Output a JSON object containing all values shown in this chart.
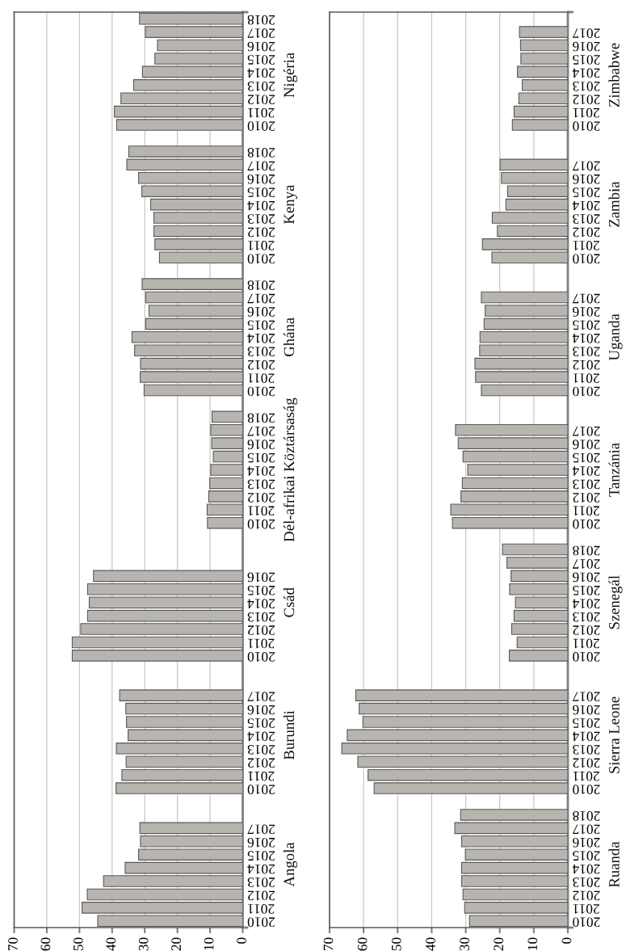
{
  "chart_data": [
    {
      "type": "bar",
      "orientation": "horizontal",
      "grid": "x",
      "xlim": [
        70,
        0
      ],
      "xticks": [
        0,
        10,
        20,
        30,
        40,
        50,
        60,
        70
      ],
      "categories": [
        "2018",
        "2017",
        "2016",
        "2015",
        "2014",
        "2013",
        "2012",
        "2011",
        "2010",
        null,
        "2018",
        "2017",
        "2016",
        "2015",
        "2014",
        "2013",
        "2012",
        "2011",
        "2010",
        null,
        "2018",
        "2017",
        "2016",
        "2015",
        "2014",
        "2013",
        "2012",
        "2011",
        "2010",
        null,
        "2018",
        "2017",
        "2016",
        "2015",
        "2014",
        "2013",
        "2012",
        "2011",
        "2010",
        null,
        null,
        null,
        "2016",
        "2015",
        "2014",
        "2013",
        "2012",
        "2011",
        "2010",
        null,
        null,
        "2017",
        "2016",
        "2015",
        "2014",
        "2013",
        "2012",
        "2011",
        "2010",
        null,
        null,
        "2017",
        "2016",
        "2015",
        "2014",
        "2013",
        "2012",
        "2011",
        "2010"
      ],
      "series": [
        {
          "name": "Nigéria",
          "color": "#b8b5b0",
          "values": [
            31.6,
            29.8,
            26.1,
            26.9,
            30.7,
            33.4,
            37.3,
            39.3,
            38.6,
            null,
            null,
            null,
            null,
            null,
            null,
            null,
            null,
            null,
            null,
            null,
            null,
            null,
            null,
            null,
            null,
            null,
            null,
            null,
            null,
            null,
            null,
            null,
            null,
            null,
            null,
            null,
            null,
            null,
            null,
            null,
            null,
            null,
            null,
            null,
            null,
            null,
            null,
            null,
            null,
            null,
            null,
            null,
            null,
            null,
            null,
            null,
            null,
            null,
            null,
            null,
            null,
            null,
            null,
            null,
            null,
            null,
            null,
            null,
            null
          ]
        },
        {
          "name": "Kenya",
          "color": "#b8b5b0",
          "values": [
            null,
            null,
            null,
            null,
            null,
            null,
            null,
            null,
            null,
            null,
            34.9,
            35.5,
            31.9,
            30.9,
            28.2,
            27.2,
            27.2,
            26.9,
            25.5,
            null,
            null,
            null,
            null,
            null,
            null,
            null,
            null,
            null,
            null,
            null,
            null,
            null,
            null,
            null,
            null,
            null,
            null,
            null,
            null,
            null,
            null,
            null,
            null,
            null,
            null,
            null,
            null,
            null,
            null,
            null,
            null,
            null,
            null,
            null,
            null,
            null,
            null,
            null,
            null,
            null,
            null,
            null,
            null,
            null,
            null,
            null,
            null,
            null,
            null
          ]
        },
        {
          "name": "Ghána",
          "color": "#b8b5b0",
          "values": [
            null,
            null,
            null,
            null,
            null,
            null,
            null,
            null,
            null,
            null,
            null,
            null,
            null,
            null,
            null,
            null,
            null,
            null,
            null,
            null,
            30.8,
            29.7,
            28.7,
            29.7,
            33.9,
            33.1,
            31.3,
            31.4,
            30.2,
            null,
            null,
            null,
            null,
            null,
            null,
            null,
            null,
            null,
            null,
            null,
            null,
            null,
            null,
            null,
            null,
            null,
            null,
            null,
            null,
            null,
            null,
            null,
            null,
            null,
            null,
            null,
            null,
            null,
            null,
            null,
            null,
            null,
            null,
            null,
            null,
            null,
            null,
            null,
            null
          ]
        },
        {
          "name": "Dél-afrikai Köztársaság",
          "color": "#b8b5b0",
          "values": [
            null,
            null,
            null,
            null,
            null,
            null,
            null,
            null,
            null,
            null,
            null,
            null,
            null,
            null,
            null,
            null,
            null,
            null,
            null,
            null,
            null,
            null,
            null,
            null,
            null,
            null,
            null,
            null,
            null,
            null,
            9.4,
            9.8,
            9.5,
            9.0,
            9.8,
            10.1,
            10.4,
            10.9,
            10.8,
            null,
            null,
            null,
            null,
            null,
            null,
            null,
            null,
            null,
            null,
            null,
            null,
            null,
            null,
            null,
            null,
            null,
            null,
            null,
            null,
            null,
            null,
            null,
            null,
            null,
            null,
            null,
            null,
            null,
            null
          ]
        },
        {
          "name": "Csád",
          "color": "#b8b5b0",
          "values": [
            null,
            null,
            null,
            null,
            null,
            null,
            null,
            null,
            null,
            null,
            null,
            null,
            null,
            null,
            null,
            null,
            null,
            null,
            null,
            null,
            null,
            null,
            null,
            null,
            null,
            null,
            null,
            null,
            null,
            null,
            null,
            null,
            null,
            null,
            null,
            null,
            null,
            null,
            null,
            null,
            null,
            null,
            45.7,
            47.5,
            47.0,
            47.5,
            49.6,
            52.2,
            52.2,
            null,
            null,
            null,
            null,
            null,
            null,
            null,
            null,
            null,
            null,
            null,
            null,
            null,
            null,
            null,
            null,
            null,
            null,
            null,
            null
          ]
        },
        {
          "name": "Burundi",
          "color": "#b8b5b0",
          "values": [
            null,
            null,
            null,
            null,
            null,
            null,
            null,
            null,
            null,
            null,
            null,
            null,
            null,
            null,
            null,
            null,
            null,
            null,
            null,
            null,
            null,
            null,
            null,
            null,
            null,
            null,
            null,
            null,
            null,
            null,
            null,
            null,
            null,
            null,
            null,
            null,
            null,
            null,
            null,
            null,
            null,
            null,
            null,
            null,
            null,
            null,
            null,
            null,
            null,
            null,
            null,
            37.7,
            35.8,
            35.6,
            35.1,
            38.7,
            35.7,
            37.0,
            38.8,
            null,
            null,
            null,
            null,
            null,
            null,
            null,
            null,
            null,
            null
          ]
        },
        {
          "name": "Angola",
          "color": "#b8b5b0",
          "values": [
            null,
            null,
            null,
            null,
            null,
            null,
            null,
            null,
            null,
            null,
            null,
            null,
            null,
            null,
            null,
            null,
            null,
            null,
            null,
            null,
            null,
            null,
            null,
            null,
            null,
            null,
            null,
            null,
            null,
            null,
            null,
            null,
            null,
            null,
            null,
            null,
            null,
            null,
            null,
            null,
            null,
            null,
            null,
            null,
            null,
            null,
            null,
            null,
            null,
            null,
            null,
            null,
            null,
            null,
            null,
            null,
            null,
            null,
            null,
            null,
            null,
            31.5,
            31.3,
            31.9,
            36.0,
            42.6,
            47.6,
            49.2,
            44.4
          ]
        }
      ]
    },
    {
      "type": "bar",
      "orientation": "horizontal",
      "grid": "x",
      "xlim": [
        70,
        0
      ],
      "xticks": [
        0,
        10,
        20,
        30,
        40,
        50,
        60,
        70
      ],
      "categories": [
        null,
        "2017",
        "2016",
        "2015",
        "2014",
        "2013",
        "2012",
        "2011",
        "2010",
        null,
        null,
        "2017",
        "2016",
        "2015",
        "2014",
        "2013",
        "2012",
        "2011",
        "2010",
        null,
        null,
        "2017",
        "2016",
        "2015",
        "2014",
        "2013",
        "2012",
        "2011",
        "2010",
        null,
        null,
        "2017",
        "2016",
        "2015",
        "2014",
        "2013",
        "2012",
        "2011",
        "2010",
        null,
        "2018",
        "2017",
        "2016",
        "2015",
        "2014",
        "2013",
        "2012",
        "2011",
        "2010",
        null,
        null,
        "2017",
        "2016",
        "2015",
        "2014",
        "2013",
        "2012",
        "2011",
        "2010",
        null,
        "2018",
        "2017",
        "2016",
        "2015",
        "2014",
        "2013",
        "2012",
        "2011",
        "2010"
      ],
      "series": [
        {
          "name": "Zimbabwe",
          "color": "#b8b5b0",
          "values": [
            null,
            14.2,
            13.9,
            13.8,
            14.8,
            13.4,
            14.4,
            15.8,
            16.3,
            null,
            null,
            null,
            null,
            null,
            null,
            null,
            null,
            null,
            null,
            null,
            null,
            null,
            null,
            null,
            null,
            null,
            null,
            null,
            null,
            null,
            null,
            null,
            null,
            null,
            null,
            null,
            null,
            null,
            null,
            null,
            null,
            null,
            null,
            null,
            null,
            null,
            null,
            null,
            null,
            null,
            null,
            null,
            null,
            null,
            null,
            null,
            null,
            null,
            null,
            null,
            null,
            null,
            null,
            null,
            null,
            null,
            null,
            null,
            null
          ]
        },
        {
          "name": "Zambia",
          "color": "#b8b5b0",
          "values": [
            null,
            null,
            null,
            null,
            null,
            null,
            null,
            null,
            null,
            null,
            null,
            19.9,
            19.5,
            17.7,
            18.2,
            22.2,
            20.7,
            25.1,
            22.3,
            null,
            null,
            null,
            null,
            null,
            null,
            null,
            null,
            null,
            null,
            null,
            null,
            null,
            null,
            null,
            null,
            null,
            null,
            null,
            null,
            null,
            null,
            null,
            null,
            null,
            null,
            null,
            null,
            null,
            null,
            null,
            null,
            null,
            null,
            null,
            null,
            null,
            null,
            null,
            null,
            null,
            null,
            null,
            null,
            null,
            null,
            null,
            null,
            null,
            null
          ]
        },
        {
          "name": "Uganda",
          "color": "#b8b5b0",
          "values": [
            null,
            null,
            null,
            null,
            null,
            null,
            null,
            null,
            null,
            null,
            null,
            null,
            null,
            null,
            null,
            null,
            null,
            null,
            null,
            null,
            null,
            25.4,
            24.3,
            24.6,
            25.8,
            25.9,
            27.3,
            27.1,
            25.4,
            null,
            null,
            null,
            null,
            null,
            null,
            null,
            null,
            null,
            null,
            null,
            null,
            null,
            null,
            null,
            null,
            null,
            null,
            null,
            null,
            null,
            null,
            null,
            null,
            null,
            null,
            null,
            null,
            null,
            null,
            null,
            null,
            null,
            null,
            null,
            null,
            null,
            null,
            null,
            null
          ]
        },
        {
          "name": "Tanzánia",
          "color": "#b8b5b0",
          "values": [
            null,
            null,
            null,
            null,
            null,
            null,
            null,
            null,
            null,
            null,
            null,
            null,
            null,
            null,
            null,
            null,
            null,
            null,
            null,
            null,
            null,
            null,
            null,
            null,
            null,
            null,
            null,
            null,
            null,
            null,
            null,
            33.0,
            32.2,
            30.8,
            29.4,
            31.0,
            31.4,
            34.4,
            33.9,
            null,
            null,
            null,
            null,
            null,
            null,
            null,
            null,
            null,
            null,
            null,
            null,
            null,
            null,
            null,
            null,
            null,
            null,
            null,
            null,
            null,
            null,
            null,
            null,
            null,
            null,
            null,
            null,
            null,
            null
          ]
        },
        {
          "name": "Szenegál",
          "color": "#b8b5b0",
          "values": [
            null,
            null,
            null,
            null,
            null,
            null,
            null,
            null,
            null,
            null,
            null,
            null,
            null,
            null,
            null,
            null,
            null,
            null,
            null,
            null,
            null,
            null,
            null,
            null,
            null,
            null,
            null,
            null,
            null,
            null,
            null,
            null,
            null,
            null,
            null,
            null,
            null,
            null,
            null,
            null,
            19.2,
            17.9,
            16.7,
            17.1,
            15.4,
            15.8,
            16.5,
            14.9,
            17.2,
            null,
            null,
            null,
            null,
            null,
            null,
            null,
            null,
            null,
            null,
            null,
            null,
            null,
            null,
            null,
            null,
            null,
            null,
            null,
            null
          ]
        },
        {
          "name": "Sierra Leone",
          "color": "#b8b5b0",
          "values": [
            null,
            null,
            null,
            null,
            null,
            null,
            null,
            null,
            null,
            null,
            null,
            null,
            null,
            null,
            null,
            null,
            null,
            null,
            null,
            null,
            null,
            null,
            null,
            null,
            null,
            null,
            null,
            null,
            null,
            null,
            null,
            null,
            null,
            null,
            null,
            null,
            null,
            null,
            null,
            null,
            null,
            null,
            null,
            null,
            null,
            null,
            null,
            null,
            null,
            null,
            null,
            62.3,
            61.3,
            60.2,
            64.8,
            66.4,
            61.7,
            58.7,
            56.9,
            null,
            null,
            null,
            null,
            null,
            null,
            null,
            null,
            null,
            null
          ]
        },
        {
          "name": "Ruanda",
          "color": "#b8b5b0",
          "values": [
            null,
            null,
            null,
            null,
            null,
            null,
            null,
            null,
            null,
            null,
            null,
            null,
            null,
            null,
            null,
            null,
            null,
            null,
            null,
            null,
            null,
            null,
            null,
            null,
            null,
            null,
            null,
            null,
            null,
            null,
            null,
            null,
            null,
            null,
            null,
            null,
            null,
            null,
            null,
            null,
            null,
            null,
            null,
            null,
            null,
            null,
            null,
            null,
            null,
            null,
            null,
            null,
            null,
            null,
            null,
            null,
            null,
            null,
            null,
            null,
            31.5,
            33.2,
            31.2,
            30.1,
            31.2,
            31.2,
            30.8,
            30.3,
            28.9
          ]
        }
      ]
    }
  ]
}
